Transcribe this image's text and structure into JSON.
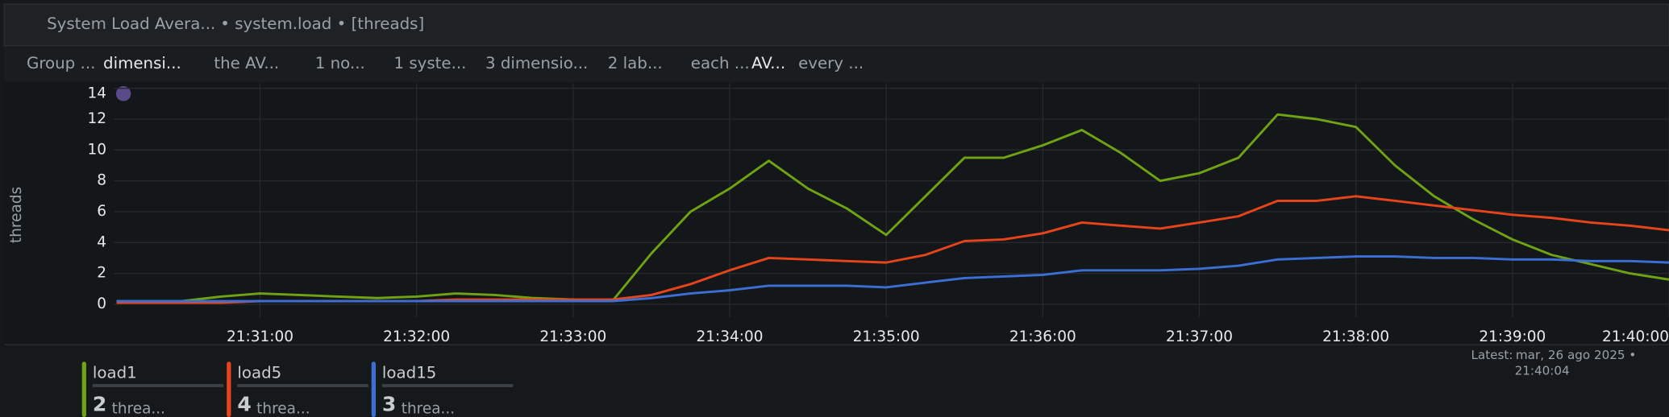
{
  "header": {
    "title": "System Load Avera...",
    "context": "• system.load • [threads]"
  },
  "toolbar": [
    "Group ...",
    "dimensi...",
    "the AV...",
    "1 no...",
    "1 syste...",
    "3 dimensio...",
    "2 lab...",
    "each ...",
    "AV...",
    "every ..."
  ],
  "chart_data": {
    "type": "line",
    "ylabel": "threads",
    "x": [
      "21:30:05",
      "21:30:15",
      "21:30:30",
      "21:30:45",
      "21:31:00",
      "21:31:15",
      "21:31:30",
      "21:31:45",
      "21:32:00",
      "21:32:15",
      "21:32:30",
      "21:32:45",
      "21:33:00",
      "21:33:15",
      "21:33:30",
      "21:33:45",
      "21:34:00",
      "21:34:15",
      "21:34:30",
      "21:34:45",
      "21:35:00",
      "21:35:15",
      "21:35:30",
      "21:35:45",
      "21:36:00",
      "21:36:15",
      "21:36:30",
      "21:36:45",
      "21:37:00",
      "21:37:15",
      "21:37:30",
      "21:37:45",
      "21:38:00",
      "21:38:15",
      "21:38:30",
      "21:38:45",
      "21:39:00",
      "21:39:15",
      "21:39:30",
      "21:39:45",
      "21:40:00"
    ],
    "series": [
      {
        "name": "load1",
        "color": "#6fa313",
        "values": [
          0.2,
          0.2,
          0.2,
          0.5,
          0.7,
          0.6,
          0.5,
          0.4,
          0.5,
          0.7,
          0.6,
          0.4,
          0.3,
          0.2,
          3.3,
          6.0,
          7.5,
          9.3,
          7.5,
          6.2,
          4.5,
          7.0,
          9.5,
          9.5,
          10.3,
          11.3,
          9.8,
          8.0,
          8.5,
          9.5,
          12.3,
          12.0,
          11.5,
          9.0,
          7.0,
          5.5,
          4.2,
          3.2,
          2.6,
          2.0,
          1.6
        ]
      },
      {
        "name": "load5",
        "color": "#e8441c",
        "values": [
          0.1,
          0.1,
          0.1,
          0.1,
          0.2,
          0.2,
          0.2,
          0.2,
          0.2,
          0.3,
          0.3,
          0.3,
          0.3,
          0.3,
          0.6,
          1.3,
          2.2,
          3.0,
          2.9,
          2.8,
          2.7,
          3.2,
          4.1,
          4.2,
          4.6,
          5.3,
          5.1,
          4.9,
          5.3,
          5.7,
          6.7,
          6.7,
          7.0,
          6.7,
          6.4,
          6.1,
          5.8,
          5.6,
          5.3,
          5.1,
          4.8
        ]
      },
      {
        "name": "load15",
        "color": "#3b6fd6",
        "values": [
          0.2,
          0.2,
          0.2,
          0.2,
          0.2,
          0.2,
          0.2,
          0.2,
          0.2,
          0.2,
          0.2,
          0.2,
          0.2,
          0.2,
          0.4,
          0.7,
          0.9,
          1.2,
          1.2,
          1.2,
          1.1,
          1.4,
          1.7,
          1.8,
          1.9,
          2.2,
          2.2,
          2.2,
          2.3,
          2.5,
          2.9,
          3.0,
          3.1,
          3.1,
          3.0,
          3.0,
          2.9,
          2.9,
          2.8,
          2.8,
          2.7
        ]
      }
    ],
    "xlim": [
      "21:30:04",
      "21:40:00"
    ],
    "xticks": [
      "21:31:00",
      "21:32:00",
      "21:33:00",
      "21:34:00",
      "21:35:00",
      "21:36:00",
      "21:37:00",
      "21:38:00",
      "21:39:00",
      "21:40:00"
    ],
    "ylim": [
      0,
      14
    ],
    "yticks": [
      0,
      2,
      4,
      6,
      8,
      10,
      12,
      14
    ],
    "grid": true
  },
  "latest": {
    "label": "Latest:",
    "date": "mar, 26 ago 2025 •",
    "time": "21:40:04"
  },
  "legend": {
    "values": [
      2,
      4,
      3
    ],
    "units": [
      "threa...",
      "threa...",
      "threa..."
    ]
  }
}
